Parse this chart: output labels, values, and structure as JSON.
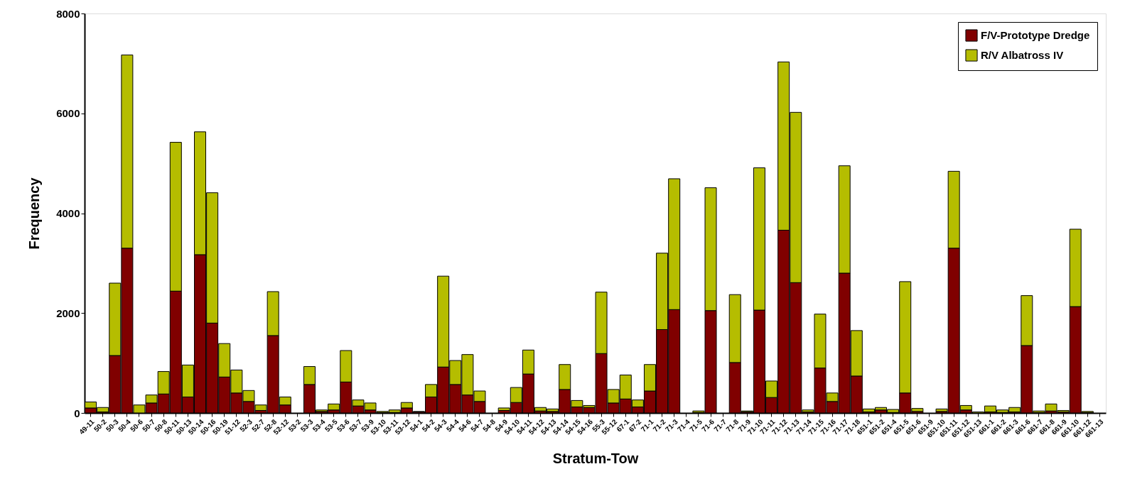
{
  "chart_data": {
    "type": "bar",
    "stacked": true,
    "xlabel": "Stratum-Tow",
    "ylabel": "Frequency",
    "categories": [
      "49-11",
      "50-2",
      "50-3",
      "50-4",
      "50-6",
      "50-7",
      "50-8",
      "50-11",
      "50-13",
      "50-14",
      "50-16",
      "50-19",
      "51-12",
      "52-3",
      "52-7",
      "52-8",
      "52-12",
      "53-2",
      "53-3",
      "53-4",
      "53-5",
      "53-6",
      "53-7",
      "53-9",
      "53-10",
      "53-11",
      "53-12",
      "54-1",
      "54-2",
      "54-3",
      "54-4",
      "54-6",
      "54-7",
      "54-8",
      "54-9",
      "54-10",
      "54-11",
      "54-12",
      "54-13",
      "54-14",
      "54-15",
      "54-16",
      "55-3",
      "55-12",
      "67-1",
      "67-2",
      "71-1",
      "71-2",
      "71-3",
      "71-4",
      "71-5",
      "71-6",
      "71-7",
      "71-8",
      "71-9",
      "71-10",
      "71-11",
      "71-12",
      "71-13",
      "71-14",
      "71-15",
      "71-16",
      "71-17",
      "71-18",
      "651-1",
      "651-2",
      "651-4",
      "651-5",
      "651-6",
      "651-9",
      "651-10",
      "651-11",
      "651-12",
      "651-13",
      "661-1",
      "661-2",
      "661-3",
      "661-6",
      "661-7",
      "661-8",
      "661-9",
      "661-10",
      "661-12",
      "661-13"
    ],
    "series": [
      {
        "name": "F/V-Prototype Dredge",
        "color": "#800000",
        "values": [
          100,
          20,
          1150,
          3300,
          0,
          200,
          380,
          2440,
          320,
          3170,
          1800,
          720,
          400,
          230,
          50,
          1550,
          160,
          0,
          570,
          30,
          60,
          620,
          140,
          60,
          10,
          10,
          100,
          20,
          320,
          920,
          570,
          360,
          230,
          0,
          50,
          210,
          780,
          40,
          30,
          470,
          120,
          110,
          1190,
          200,
          280,
          120,
          440,
          1670,
          2070,
          0,
          10,
          2050,
          0,
          1010,
          20,
          2060,
          310,
          3660,
          2610,
          20,
          900,
          230,
          2800,
          740,
          20,
          60,
          10,
          400,
          30,
          0,
          30,
          3300,
          60,
          null,
          20,
          10,
          20,
          1350,
          10,
          40,
          20,
          2130,
          10,
          0
        ]
      },
      {
        "name": "R/V Albatross IV",
        "color": "#b5bd00",
        "values": [
          120,
          90,
          1450,
          3870,
          160,
          160,
          450,
          2980,
          640,
          2460,
          2610,
          670,
          460,
          220,
          110,
          880,
          160,
          0,
          360,
          30,
          120,
          630,
          120,
          140,
          20,
          50,
          110,
          10,
          250,
          1820,
          480,
          810,
          210,
          0,
          50,
          300,
          480,
          70,
          50,
          500,
          130,
          40,
          1230,
          270,
          480,
          140,
          530,
          1530,
          2620,
          0,
          30,
          2460,
          0,
          1360,
          20,
          2850,
          330,
          3370,
          3410,
          40,
          1080,
          170,
          2150,
          910,
          60,
          50,
          60,
          2230,
          60,
          0,
          50,
          1540,
          90,
          20,
          120,
          50,
          90,
          1000,
          30,
          140,
          30,
          1550,
          20,
          0
        ]
      }
    ],
    "ylim": [
      0,
      8000
    ],
    "yticks": [
      0,
      2000,
      4000,
      6000,
      8000
    ],
    "grid": false,
    "legend": "top right"
  }
}
